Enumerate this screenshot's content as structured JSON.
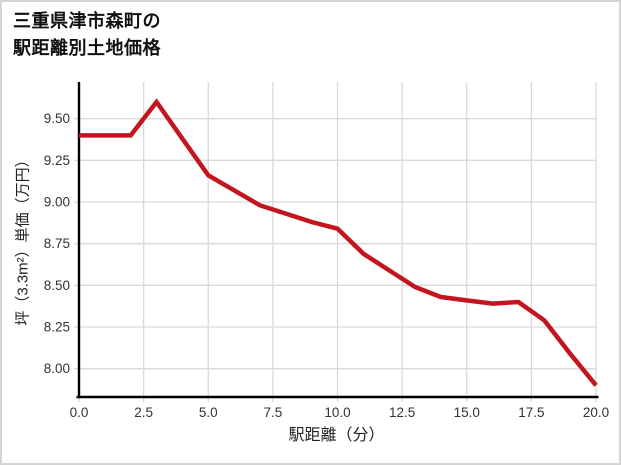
{
  "page": {
    "background": "#ffffff",
    "frame_border_color": "#d4d4d4"
  },
  "chart_data": {
    "type": "line",
    "title_lines": [
      "三重県津市森町の",
      "駅距離別土地価格"
    ],
    "xlabel": "駅距離（分）",
    "ylabel": "坪（3.3m²）単価（万円）",
    "series": [
      {
        "name": "駅距離別土地価格",
        "x": [
          0,
          1,
          2,
          3,
          4,
          5,
          6,
          7,
          8,
          9,
          10,
          11,
          12,
          13,
          14,
          15,
          16,
          17,
          18,
          19,
          20
        ],
        "values": [
          9.4,
          9.4,
          9.4,
          9.6,
          9.38,
          9.16,
          9.07,
          8.98,
          8.93,
          8.88,
          8.84,
          8.69,
          8.59,
          8.49,
          8.43,
          8.41,
          8.39,
          8.4,
          8.29,
          8.09,
          7.9
        ]
      }
    ],
    "x_ticks": [
      0,
      2.5,
      5,
      7.5,
      10,
      12.5,
      15,
      17.5,
      20
    ],
    "x_tick_labels": [
      "0.0",
      "2.5",
      "5.0",
      "7.5",
      "10.0",
      "12.5",
      "15.0",
      "17.5",
      "20.0"
    ],
    "y_ticks": [
      8.0,
      8.25,
      8.5,
      8.75,
      9.0,
      9.25,
      9.5
    ],
    "y_tick_labels": [
      "8.00",
      "8.25",
      "8.50",
      "8.75",
      "9.00",
      "9.25",
      "9.50"
    ],
    "xlim": [
      0,
      20
    ],
    "ylim": [
      7.83,
      9.72
    ],
    "grid": true,
    "legend": "none",
    "line_color": "#c2151d",
    "grid_color": "#d9d9d9",
    "axis_color": "#000000",
    "tick_label_color": "#333333"
  }
}
